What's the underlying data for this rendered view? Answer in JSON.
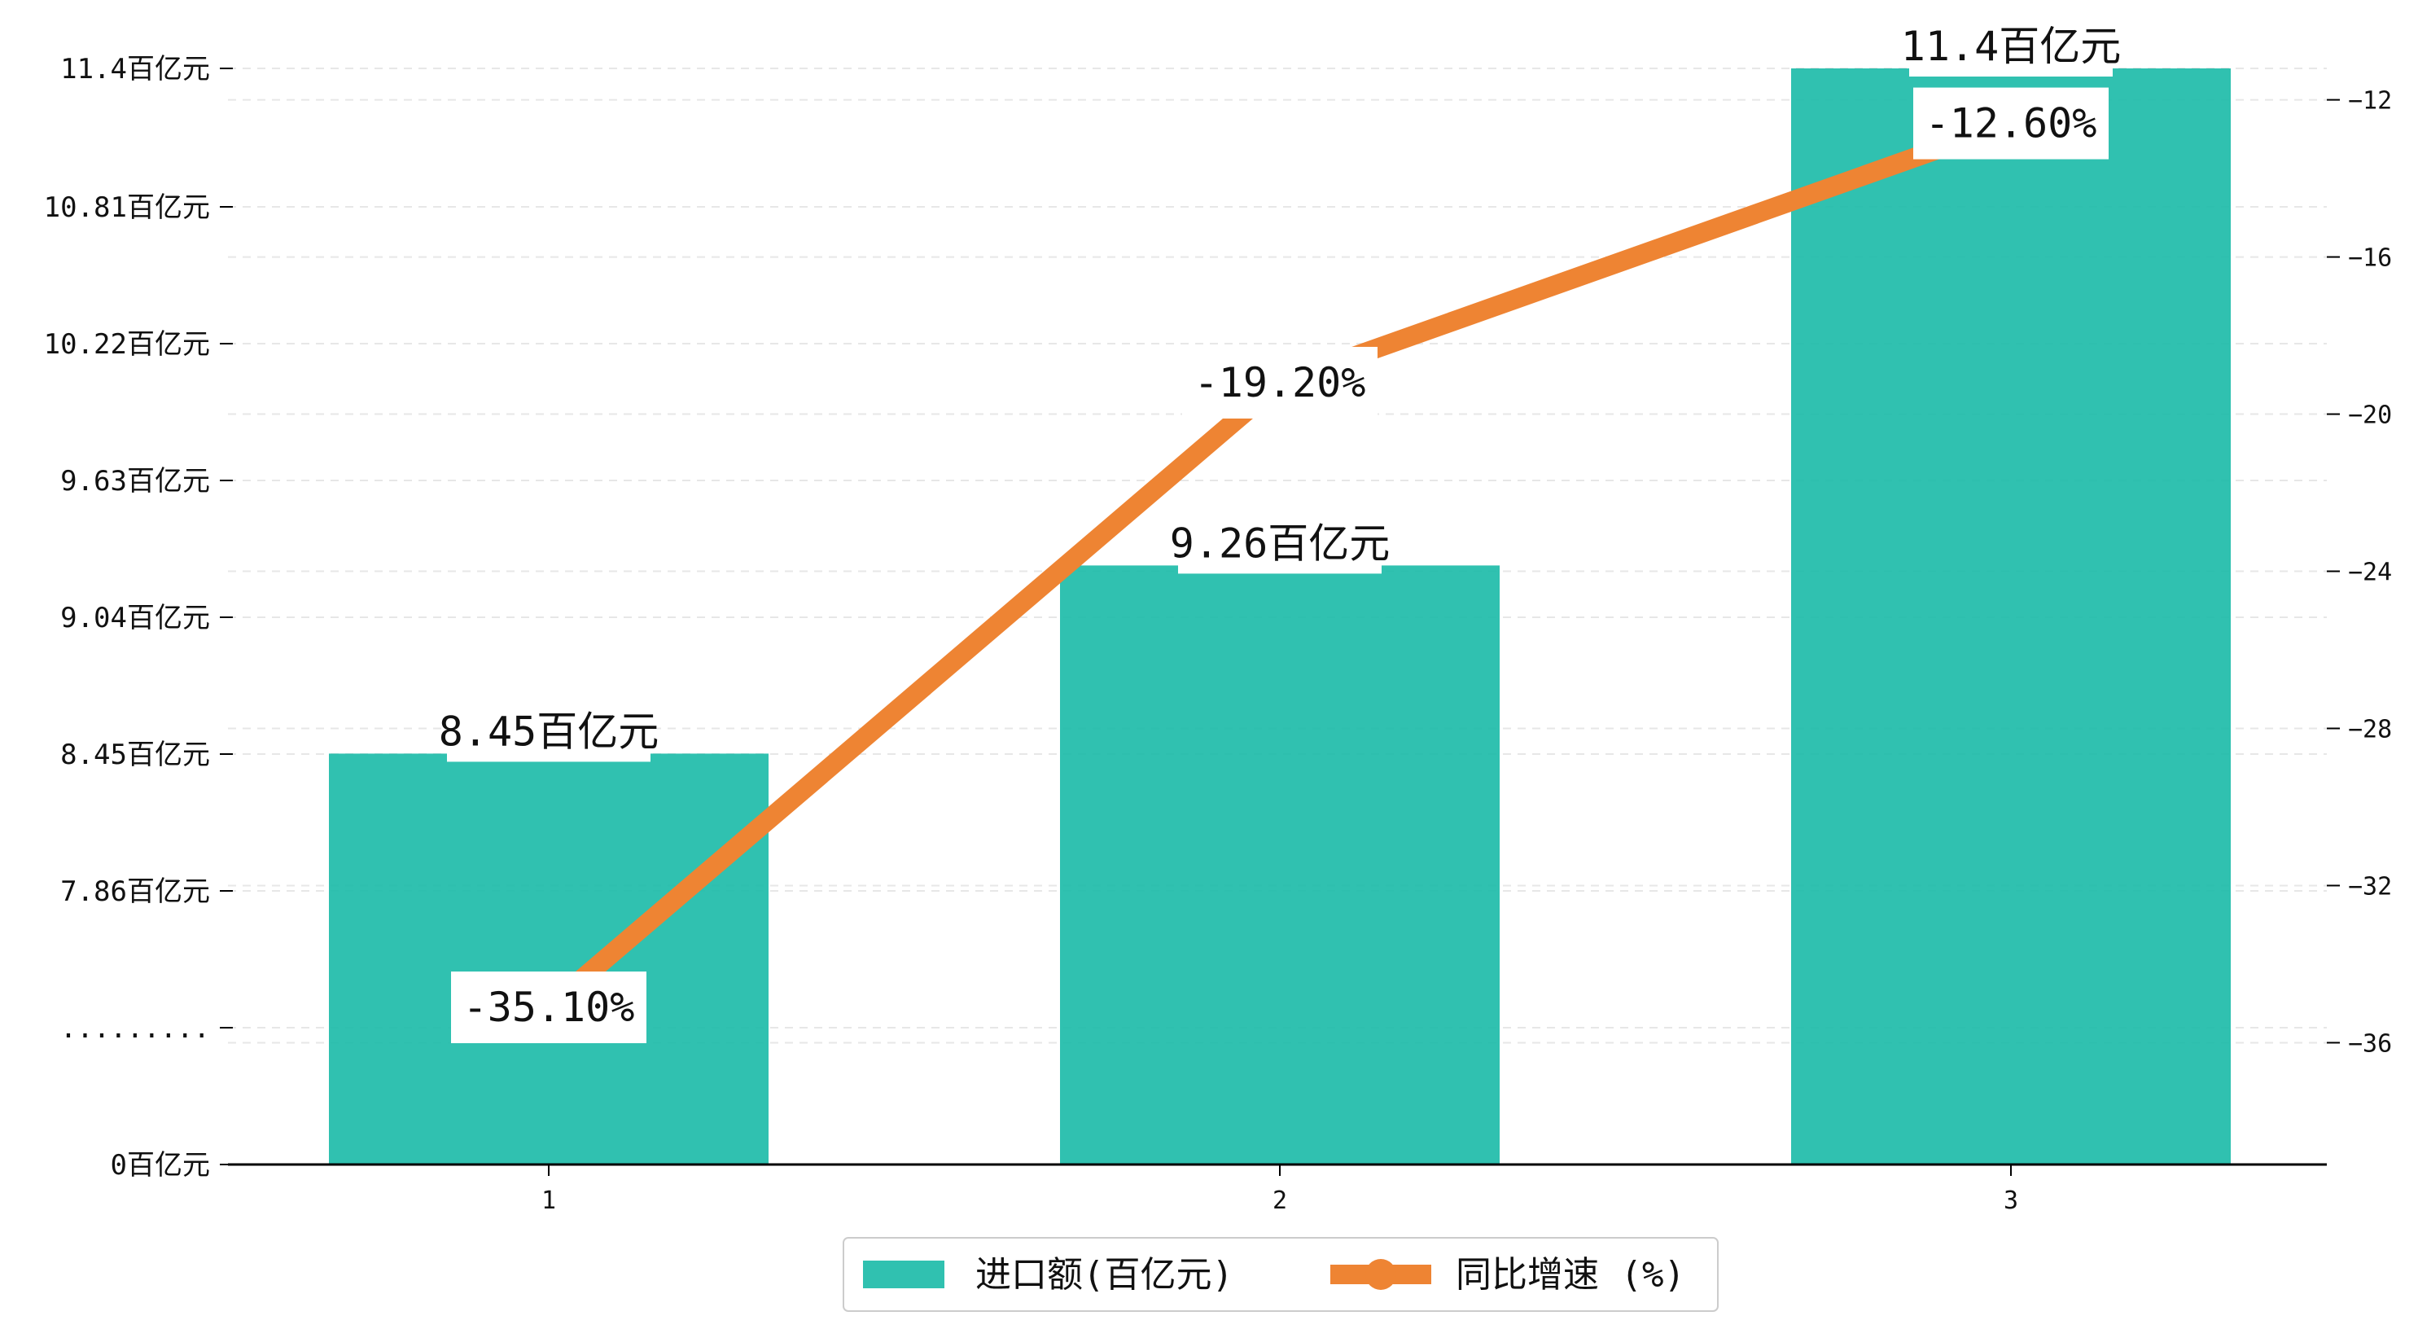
{
  "chart_data": {
    "type": "bar",
    "categories": [
      "1",
      "2",
      "3"
    ],
    "series": [
      {
        "name": "进口额(百亿元)",
        "type": "bar",
        "axis": "left",
        "values": [
          8.45,
          9.26,
          11.4
        ],
        "labels": [
          "8.45百亿元",
          "9.26百亿元",
          "11.4百亿元"
        ],
        "color": "#1ABAA7"
      },
      {
        "name": "同比增速 (%)",
        "type": "line",
        "axis": "right",
        "values": [
          -35.1,
          -19.2,
          -12.6
        ],
        "labels": [
          "-35.10%",
          "-19.20%",
          "-12.60%"
        ],
        "color": "#EE8433"
      }
    ],
    "left_axis": {
      "ticks": [
        {
          "value": 0,
          "label": "0百亿元"
        },
        {
          "value": 7.27,
          "label": "........."
        },
        {
          "value": 7.86,
          "label": "7.86百亿元"
        },
        {
          "value": 8.45,
          "label": "8.45百亿元"
        },
        {
          "value": 9.04,
          "label": "9.04百亿元"
        },
        {
          "value": 9.63,
          "label": "9.63百亿元"
        },
        {
          "value": 10.22,
          "label": "10.22百亿元"
        },
        {
          "value": 10.81,
          "label": "10.81百亿元"
        },
        {
          "value": 11.4,
          "label": "11.4百亿元"
        }
      ],
      "scale": "broken"
    },
    "right_axis": {
      "ticks": [
        "-36",
        "-32",
        "-28",
        "-24",
        "-20",
        "-16",
        "-12"
      ],
      "ylim": [
        -39.1,
        -11.2
      ]
    },
    "grid": true,
    "legend_position": "bottom-center"
  }
}
